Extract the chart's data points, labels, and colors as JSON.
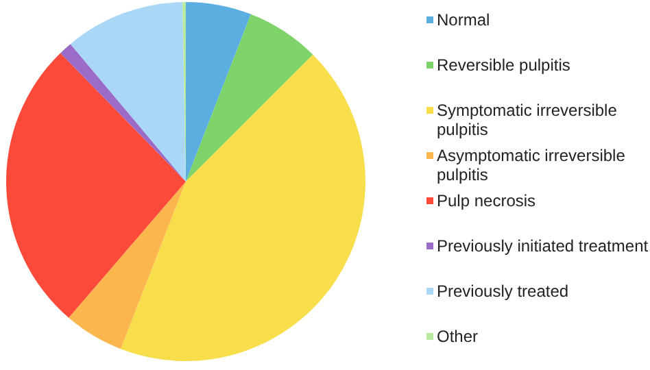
{
  "chart_data": {
    "type": "pie",
    "categories": [
      "Normal",
      "Reversible pulpitis",
      "Symptomatic irreversible pulpitis",
      "Asymptomatic irreversible pulpitis",
      "Pulp necrosis",
      "Previously initiated treatment",
      "Previously treated",
      "Other"
    ],
    "values": [
      5.9,
      6.6,
      43.4,
      5.4,
      26.4,
      1.2,
      10.8,
      0.3
    ],
    "colors": [
      "#5aaee0",
      "#7ed36a",
      "#f9de4c",
      "#fbb64e",
      "#fb4a3a",
      "#9a6cc8",
      "#a9d7f5",
      "#b9eaa2"
    ],
    "legend": "right"
  }
}
